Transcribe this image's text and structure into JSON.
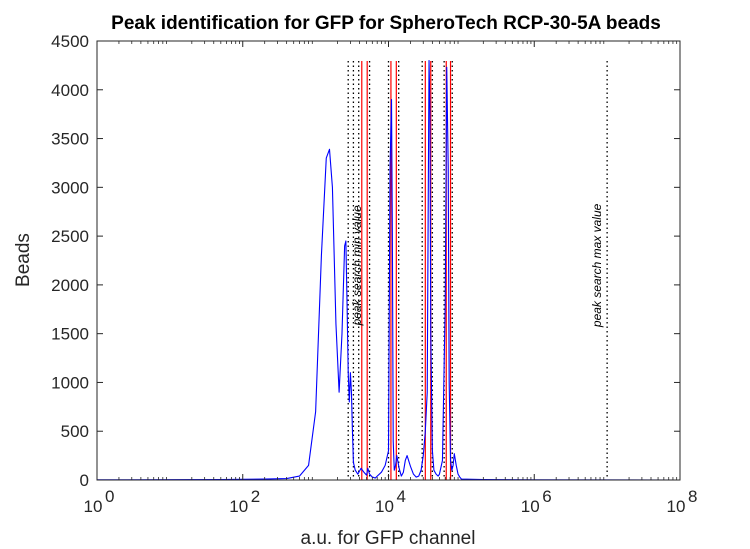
{
  "chart_data": {
    "type": "line",
    "title": "Peak identification for GFP for SpheroTech RCP-30-5A beads",
    "xlabel": "a.u. for GFP channel",
    "ylabel": "Beads",
    "x_scale": "log",
    "xlim": [
      1,
      100000000
    ],
    "ylim": [
      0,
      4500
    ],
    "x_ticks": [
      {
        "value": 1,
        "base": "10",
        "exp": "0"
      },
      {
        "value": 100,
        "base": "10",
        "exp": "2"
      },
      {
        "value": 10000,
        "base": "10",
        "exp": "4"
      },
      {
        "value": 1000000,
        "base": "10",
        "exp": "6"
      },
      {
        "value": 100000000,
        "base": "10",
        "exp": "8"
      }
    ],
    "y_ticks": [
      "0",
      "500",
      "1000",
      "1500",
      "2000",
      "2500",
      "3000",
      "3500",
      "4000",
      "4500"
    ],
    "grid": false,
    "series": [
      {
        "color": "#0000ff",
        "x": [
          1,
          10,
          50,
          100,
          200,
          400,
          600,
          800,
          1000,
          1200,
          1400,
          1550,
          1700,
          1900,
          2100,
          2300,
          2500,
          2600,
          2700,
          2800,
          2900,
          3000,
          3100,
          3200,
          3300,
          3500,
          3800,
          4200,
          4600,
          5000,
          5200,
          5500,
          6000,
          6600,
          7000,
          8000,
          9000,
          10000,
          10500,
          11000,
          11300,
          11600,
          12000,
          12500,
          13000,
          14000,
          15000,
          16000,
          17000,
          18000,
          20000,
          22000,
          24000,
          26000,
          28000,
          30000,
          32000,
          34000,
          35000,
          36000,
          37000,
          38000,
          40000,
          42000,
          45000,
          48000,
          50000,
          55000,
          60000,
          63000,
          66000,
          68000,
          71000,
          74000,
          77000,
          80000,
          85000,
          90000,
          95000,
          100000,
          200000,
          1000000,
          100000000
        ],
        "y": [
          2,
          3,
          5,
          7,
          10,
          15,
          40,
          150,
          700,
          2300,
          3300,
          3390,
          3000,
          1600,
          900,
          1500,
          2400,
          2450,
          1800,
          1100,
          800,
          1100,
          900,
          500,
          180,
          100,
          60,
          120,
          80,
          50,
          120,
          60,
          30,
          20,
          40,
          80,
          150,
          300,
          3200,
          3900,
          2500,
          400,
          100,
          150,
          250,
          120,
          40,
          80,
          200,
          250,
          140,
          60,
          30,
          40,
          100,
          250,
          500,
          900,
          2700,
          4300,
          3800,
          1500,
          300,
          100,
          60,
          40,
          60,
          200,
          1800,
          4230,
          3200,
          1000,
          200,
          100,
          150,
          270,
          150,
          60,
          30,
          10,
          5,
          2,
          0
        ]
      }
    ],
    "vlines": [
      {
        "x": 2800,
        "style": "dotted",
        "color": "#000000"
      },
      {
        "x": 3300,
        "style": "dotted",
        "color": "#000000"
      },
      {
        "x": 3900,
        "style": "dotted",
        "color": "#000000"
      },
      {
        "x": 4300,
        "style": "solid",
        "color": "#ff0000"
      },
      {
        "x": 5100,
        "style": "solid",
        "color": "#ff0000"
      },
      {
        "x": 5500,
        "style": "dotted",
        "color": "#000000"
      },
      {
        "x": 10000,
        "style": "dotted",
        "color": "#000000"
      },
      {
        "x": 10800,
        "style": "solid",
        "color": "#ff0000"
      },
      {
        "x": 12800,
        "style": "solid",
        "color": "#ff0000"
      },
      {
        "x": 13800,
        "style": "dotted",
        "color": "#000000"
      },
      {
        "x": 29000,
        "style": "dotted",
        "color": "#000000"
      },
      {
        "x": 32000,
        "style": "solid",
        "color": "#ff0000"
      },
      {
        "x": 38000,
        "style": "solid",
        "color": "#ff0000"
      },
      {
        "x": 40000,
        "style": "dotted",
        "color": "#000000"
      },
      {
        "x": 58000,
        "style": "dotted",
        "color": "#000000"
      },
      {
        "x": 62000,
        "style": "solid",
        "color": "#ff0000"
      },
      {
        "x": 71000,
        "style": "solid",
        "color": "#ff0000"
      },
      {
        "x": 75000,
        "style": "dotted",
        "color": "#000000"
      },
      {
        "x": 10000000,
        "style": "dotted",
        "color": "#000000"
      }
    ],
    "annotations": [
      {
        "text": "peak search min value",
        "x": 4200,
        "y": 2200,
        "rotation": -90
      },
      {
        "text": "peak search max value",
        "x": 8300000,
        "y": 2200,
        "rotation": -90
      }
    ]
  }
}
